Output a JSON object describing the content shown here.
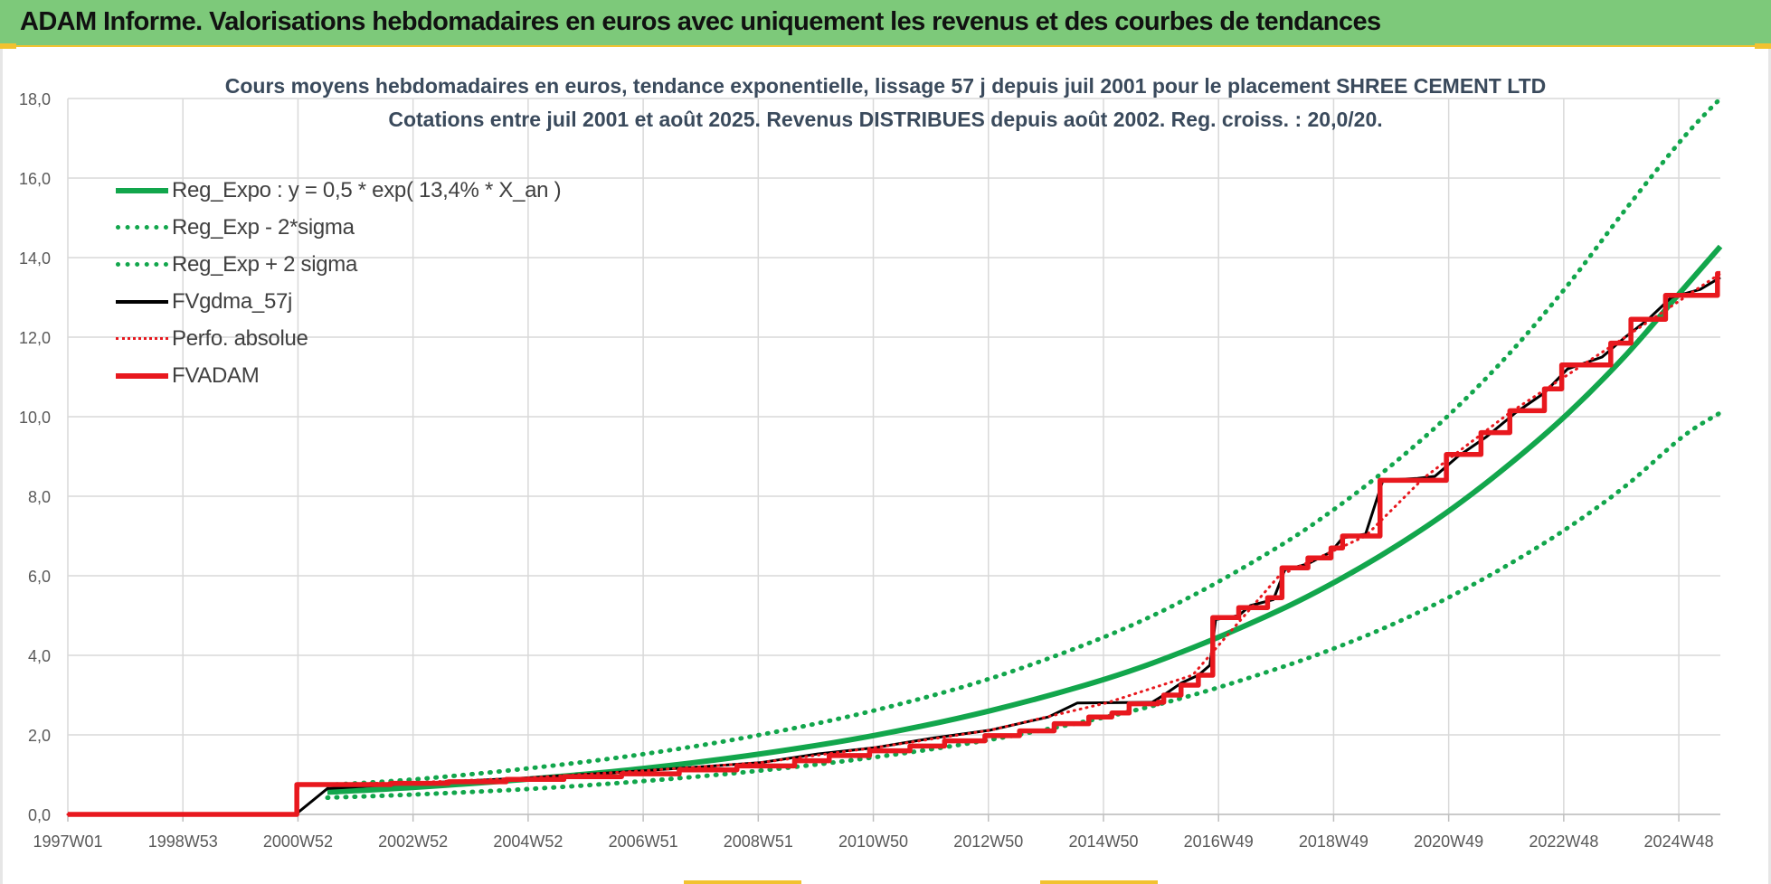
{
  "banner": {
    "title": "ADAM Informe. Valorisations hebdomadaires en euros avec uniquement les revenus et des courbes de tendances"
  },
  "colors": {
    "banner_bg": "#7dc97a",
    "trend_green": "#12a64c",
    "red": "#e8181e",
    "black": "#000000",
    "grid": "#d9d9d9"
  },
  "chart_data": {
    "type": "line",
    "title": "Cours moyens hebdomadaires en euros, tendance exponentielle, lissage 57 j depuis juil 2001 pour le placement SHREE CEMENT LTD",
    "subtitle": "Cotations entre juil 2001 et août 2025. Revenus DISTRIBUES depuis août 2002. Reg. croiss. : 20,0/20.",
    "x_tick_labels": [
      "1997W01",
      "1998W53",
      "2000W52",
      "2002W52",
      "2004W52",
      "2006W51",
      "2008W51",
      "2010W50",
      "2012W50",
      "2014W50",
      "2016W49",
      "2018W49",
      "2020W49",
      "2022W48",
      "2024W48"
    ],
    "x_range_years": [
      1997.0,
      2025.65
    ],
    "y_tick_labels": [
      "0,0",
      "2,0",
      "4,0",
      "6,0",
      "8,0",
      "10,0",
      "12,0",
      "14,0",
      "16,0",
      "18,0"
    ],
    "ylim": [
      0,
      18
    ],
    "grid": true,
    "legend_position": "top-left",
    "series": [
      {
        "name": "Reg_Expo : y = 0,5 * exp( 13,4% *  X_an )",
        "style": "solid-thick",
        "color": "#12a64c",
        "points": [
          [
            2001.5,
            0.56
          ],
          [
            2003,
            0.68
          ],
          [
            2005,
            0.89
          ],
          [
            2007,
            1.16
          ],
          [
            2009,
            1.52
          ],
          [
            2011,
            1.99
          ],
          [
            2013,
            2.61
          ],
          [
            2015,
            3.41
          ],
          [
            2016.5,
            4.19
          ],
          [
            2018,
            5.13
          ],
          [
            2019,
            5.87
          ],
          [
            2020,
            6.72
          ],
          [
            2021,
            7.69
          ],
          [
            2022,
            8.81
          ],
          [
            2023,
            10.07
          ],
          [
            2024,
            11.53
          ],
          [
            2025,
            13.2
          ],
          [
            2025.65,
            14.28
          ]
        ]
      },
      {
        "name": "Reg_Exp - 2*sigma",
        "style": "dotted",
        "color": "#12a64c",
        "points": [
          [
            2001.5,
            0.42
          ],
          [
            2003,
            0.5
          ],
          [
            2005,
            0.64
          ],
          [
            2007,
            0.84
          ],
          [
            2009,
            1.1
          ],
          [
            2011,
            1.44
          ],
          [
            2013,
            1.88
          ],
          [
            2015,
            2.45
          ],
          [
            2016.5,
            3.0
          ],
          [
            2018,
            3.68
          ],
          [
            2019,
            4.2
          ],
          [
            2020,
            4.8
          ],
          [
            2021,
            5.5
          ],
          [
            2022,
            6.3
          ],
          [
            2023,
            7.2
          ],
          [
            2024,
            8.25
          ],
          [
            2025,
            9.5
          ],
          [
            2025.65,
            10.1
          ]
        ]
      },
      {
        "name": "Reg_Exp + 2 sigma",
        "style": "dotted",
        "color": "#12a64c",
        "points": [
          [
            2001.5,
            0.74
          ],
          [
            2003,
            0.88
          ],
          [
            2005,
            1.16
          ],
          [
            2007,
            1.52
          ],
          [
            2009,
            2.0
          ],
          [
            2011,
            2.62
          ],
          [
            2013,
            3.42
          ],
          [
            2015,
            4.48
          ],
          [
            2016.5,
            5.5
          ],
          [
            2018,
            6.74
          ],
          [
            2019,
            7.72
          ],
          [
            2020,
            8.84
          ],
          [
            2021,
            10.12
          ],
          [
            2022,
            11.6
          ],
          [
            2023,
            13.3
          ],
          [
            2024,
            15.2
          ],
          [
            2025,
            17.0
          ],
          [
            2025.65,
            18.0
          ]
        ]
      },
      {
        "name": "FVgdma_57j",
        "style": "solid-thin",
        "color": "#000000",
        "points": [
          [
            1997.0,
            0.0
          ],
          [
            2000.95,
            0.0
          ],
          [
            2001.5,
            0.65
          ],
          [
            2003,
            0.78
          ],
          [
            2005,
            0.92
          ],
          [
            2007,
            1.1
          ],
          [
            2009,
            1.3
          ],
          [
            2010,
            1.52
          ],
          [
            2011,
            1.68
          ],
          [
            2012,
            1.92
          ],
          [
            2013,
            2.12
          ],
          [
            2014,
            2.45
          ],
          [
            2014.5,
            2.8
          ],
          [
            2015.8,
            2.82
          ],
          [
            2016,
            3.0
          ],
          [
            2016.3,
            3.3
          ],
          [
            2016.6,
            3.5
          ],
          [
            2016.8,
            3.75
          ],
          [
            2016.9,
            4.9
          ],
          [
            2017.3,
            5.0
          ],
          [
            2017.5,
            5.25
          ],
          [
            2017.9,
            5.4
          ],
          [
            2018.1,
            6.15
          ],
          [
            2018.5,
            6.3
          ],
          [
            2018.9,
            6.6
          ],
          [
            2019.1,
            6.95
          ],
          [
            2019.5,
            7.05
          ],
          [
            2019.8,
            8.4
          ],
          [
            2020.4,
            8.45
          ],
          [
            2020.7,
            8.5
          ],
          [
            2021.1,
            9.0
          ],
          [
            2021.6,
            9.5
          ],
          [
            2022.1,
            10.1
          ],
          [
            2022.6,
            10.6
          ],
          [
            2023,
            11.2
          ],
          [
            2023.6,
            11.5
          ],
          [
            2024,
            12.0
          ],
          [
            2024.4,
            12.45
          ],
          [
            2024.8,
            13.0
          ],
          [
            2025.3,
            13.2
          ],
          [
            2025.65,
            13.5
          ]
        ]
      },
      {
        "name": "Perfo. absolue",
        "style": "dotted-thin",
        "color": "#e8181e",
        "points": [
          [
            1997.0,
            0.0
          ],
          [
            2000.95,
            0.0
          ],
          [
            2001.0,
            0.75
          ],
          [
            2003,
            0.8
          ],
          [
            2005,
            0.92
          ],
          [
            2007,
            1.1
          ],
          [
            2009,
            1.3
          ],
          [
            2011,
            1.68
          ],
          [
            2013,
            2.12
          ],
          [
            2015,
            2.8
          ],
          [
            2016.5,
            3.5
          ],
          [
            2018,
            6.0
          ],
          [
            2019.5,
            7.0
          ],
          [
            2020.5,
            8.45
          ],
          [
            2022,
            10.1
          ],
          [
            2024,
            12.0
          ],
          [
            2025.65,
            13.6
          ]
        ]
      },
      {
        "name": "FVADAM",
        "style": "step-thick",
        "color": "#e8181e",
        "steps": [
          [
            2000.95,
            0.0
          ],
          [
            2000.97,
            0.75
          ],
          [
            2002.6,
            0.78
          ],
          [
            2003.6,
            0.82
          ],
          [
            2004.6,
            0.88
          ],
          [
            2005.6,
            0.95
          ],
          [
            2006.6,
            1.02
          ],
          [
            2007.6,
            1.12
          ],
          [
            2008.6,
            1.22
          ],
          [
            2009.6,
            1.35
          ],
          [
            2010.2,
            1.48
          ],
          [
            2010.9,
            1.6
          ],
          [
            2011.6,
            1.72
          ],
          [
            2012.2,
            1.85
          ],
          [
            2012.9,
            1.98
          ],
          [
            2013.5,
            2.1
          ],
          [
            2014.1,
            2.28
          ],
          [
            2014.7,
            2.45
          ],
          [
            2015.1,
            2.55
          ],
          [
            2015.4,
            2.78
          ],
          [
            2015.9,
            2.82
          ],
          [
            2016.0,
            3.0
          ],
          [
            2016.3,
            3.25
          ],
          [
            2016.6,
            3.5
          ],
          [
            2016.85,
            4.95
          ],
          [
            2017.3,
            5.2
          ],
          [
            2017.8,
            5.45
          ],
          [
            2018.05,
            6.2
          ],
          [
            2018.5,
            6.45
          ],
          [
            2018.9,
            6.7
          ],
          [
            2019.1,
            7.0
          ],
          [
            2019.75,
            8.4
          ],
          [
            2020.9,
            9.05
          ],
          [
            2021.5,
            9.6
          ],
          [
            2022.0,
            10.15
          ],
          [
            2022.6,
            10.7
          ],
          [
            2022.9,
            11.3
          ],
          [
            2023.75,
            11.85
          ],
          [
            2024.1,
            12.45
          ],
          [
            2024.7,
            13.05
          ],
          [
            2025.6,
            13.6
          ]
        ]
      }
    ]
  }
}
